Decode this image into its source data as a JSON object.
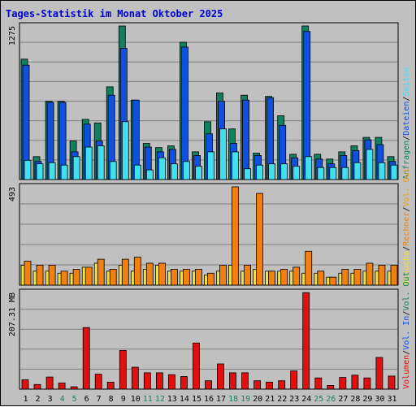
{
  "title": "Tages-Statistik im Monat Oktober 2025",
  "colors": {
    "background": "#c0c0c0",
    "title": "#0000cc",
    "grid": "#808080",
    "anfragen": "#108060",
    "dateien": "#1050e0",
    "seiten": "#40e0f0",
    "besuche": "#f0e040",
    "rechner": "#f08010",
    "vol_out": "#f0a020",
    "volumen": "#e01010",
    "weekday_label": "#000000",
    "weekend_label": "#208060"
  },
  "chart_data": [
    {
      "type": "bar",
      "panel": "top",
      "ytick_label": "1275",
      "ymax": 1275,
      "legend": [
        "Anfragen",
        "/",
        "Dateien",
        "/",
        "Seiten"
      ],
      "legend_colors": [
        "#108060",
        "#000000",
        "#1050e0",
        "#000000",
        "#40e0f0"
      ],
      "categories": [
        "1",
        "2",
        "3",
        "4",
        "5",
        "6",
        "7",
        "8",
        "9",
        "10",
        "11",
        "12",
        "13",
        "14",
        "15",
        "16",
        "17",
        "18",
        "19",
        "20",
        "21",
        "22",
        "23",
        "24",
        "25",
        "26",
        "27",
        "28",
        "29",
        "30",
        "31"
      ],
      "weekend_days": [
        "4",
        "5",
        "11",
        "12",
        "18",
        "19",
        "25",
        "26"
      ],
      "series": [
        {
          "name": "Anfragen",
          "values": [
            1000,
            190,
            650,
            650,
            320,
            500,
            470,
            770,
            1275,
            660,
            300,
            265,
            280,
            1140,
            230,
            480,
            720,
            420,
            700,
            220,
            690,
            530,
            210,
            1275,
            210,
            170,
            230,
            280,
            350,
            350,
            190
          ]
        },
        {
          "name": "Dateien",
          "values": [
            950,
            150,
            640,
            640,
            230,
            460,
            320,
            700,
            1090,
            660,
            270,
            230,
            250,
            1100,
            200,
            380,
            650,
            300,
            660,
            200,
            680,
            450,
            180,
            1230,
            170,
            130,
            200,
            240,
            330,
            290,
            150
          ]
        },
        {
          "name": "Seiten",
          "values": [
            160,
            130,
            140,
            120,
            190,
            270,
            280,
            150,
            480,
            120,
            80,
            180,
            130,
            150,
            110,
            230,
            420,
            230,
            90,
            120,
            130,
            130,
            110,
            190,
            100,
            100,
            100,
            140,
            250,
            140,
            120
          ]
        }
      ]
    },
    {
      "type": "bar",
      "panel": "middle",
      "ytick_label": "493",
      "ymax": 493,
      "legend": [
        "Besuche",
        "/",
        "Rechner",
        "/",
        "Vol. Out"
      ],
      "legend_colors": [
        "#f0e040",
        "#000000",
        "#f08010",
        "#000000",
        "#f0a020"
      ],
      "categories": [
        "1",
        "2",
        "3",
        "4",
        "5",
        "6",
        "7",
        "8",
        "9",
        "10",
        "11",
        "12",
        "13",
        "14",
        "15",
        "16",
        "17",
        "18",
        "19",
        "20",
        "21",
        "22",
        "23",
        "24",
        "25",
        "26",
        "27",
        "28",
        "29",
        "30",
        "31"
      ],
      "series": [
        {
          "name": "Besuche",
          "values": [
            100,
            70,
            70,
            60,
            60,
            90,
            110,
            70,
            100,
            70,
            80,
            100,
            70,
            70,
            70,
            50,
            70,
            100,
            70,
            80,
            70,
            70,
            70,
            60,
            60,
            40,
            60,
            60,
            70,
            70,
            70
          ]
        },
        {
          "name": "Rechner",
          "values": [
            120,
            100,
            100,
            70,
            80,
            90,
            130,
            80,
            130,
            140,
            110,
            110,
            80,
            80,
            80,
            60,
            100,
            493,
            100,
            460,
            70,
            80,
            90,
            170,
            70,
            40,
            80,
            80,
            110,
            100,
            100
          ]
        },
        {
          "name": "Vol. Out",
          "values": [
            0,
            0,
            0,
            0,
            0,
            0,
            0,
            0,
            0,
            0,
            0,
            0,
            0,
            0,
            0,
            0,
            0,
            0,
            0,
            0,
            0,
            0,
            0,
            0,
            0,
            0,
            0,
            0,
            0,
            0,
            0
          ]
        }
      ]
    },
    {
      "type": "bar",
      "panel": "bottom",
      "ytick_label": "207.31 MB",
      "ymax": 207.31,
      "yunit": "MB",
      "legend": [
        "Volumen",
        "/",
        "Vol. In",
        "/",
        "Vol. Out"
      ],
      "legend_colors": [
        "#e01010",
        "#000000",
        "#1050e0",
        "#000000",
        "#108060"
      ],
      "categories": [
        "1",
        "2",
        "3",
        "4",
        "5",
        "6",
        "7",
        "8",
        "9",
        "10",
        "11",
        "12",
        "13",
        "14",
        "15",
        "16",
        "17",
        "18",
        "19",
        "20",
        "21",
        "22",
        "23",
        "24",
        "25",
        "26",
        "27",
        "28",
        "29",
        "30",
        "31"
      ],
      "series": [
        {
          "name": "Volumen",
          "values": [
            20,
            10,
            26,
            13,
            5,
            132,
            32,
            15,
            83,
            47,
            35,
            35,
            31,
            27,
            99,
            18,
            54,
            35,
            35,
            18,
            15,
            18,
            39,
            207,
            24,
            8,
            25,
            30,
            24,
            68,
            28
          ]
        }
      ]
    }
  ]
}
